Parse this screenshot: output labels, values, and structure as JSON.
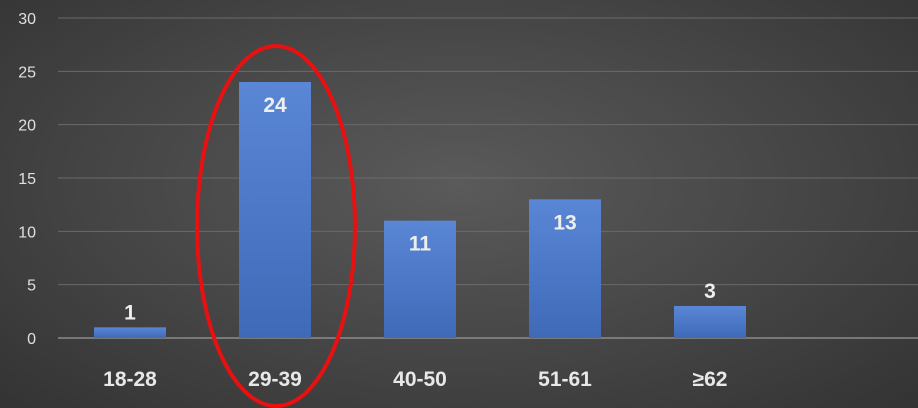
{
  "chart_data": {
    "type": "bar",
    "categories": [
      "18-28",
      "29-39",
      "40-50",
      "51-61",
      "≥62"
    ],
    "values": [
      1,
      24,
      11,
      13,
      3
    ],
    "ylim": [
      0,
      30
    ],
    "yticks": [
      0,
      5,
      10,
      15,
      20,
      25,
      30
    ],
    "grid": true,
    "data_labels": true,
    "highlight": {
      "category": "29-39",
      "shape": "ellipse",
      "color": "#e81010"
    },
    "colors": {
      "bar": "#4472c4",
      "bar_light": "#5a86d6",
      "background": "#454545",
      "grid": "#6a6a6a",
      "text": "#e8e8e8"
    }
  }
}
